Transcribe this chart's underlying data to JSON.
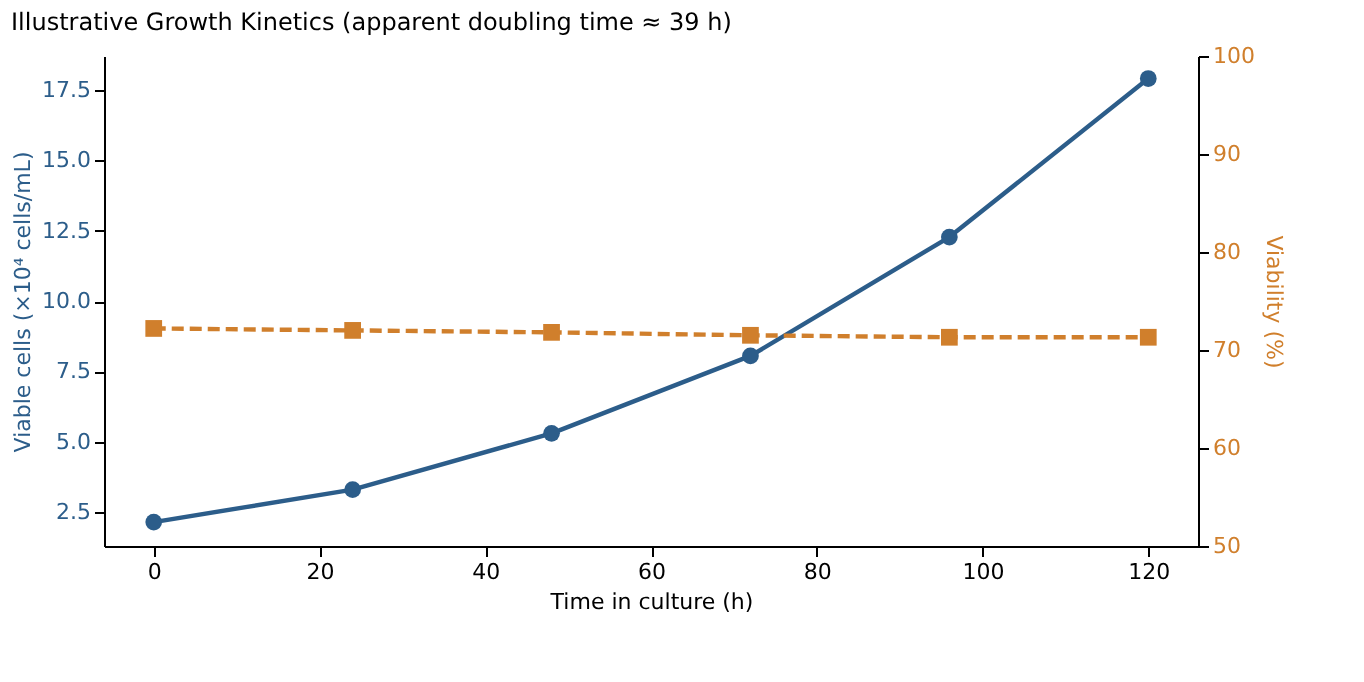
{
  "chart_data": {
    "type": "line",
    "title": "Illustrative Growth Kinetics (apparent doubling time ≈ 39 h)",
    "xlabel": "Time in culture (h)",
    "ylabel": "Viable cells (×10⁴ cells/mL)",
    "y2label": "Viability (%)",
    "x": [
      0,
      24,
      48,
      72,
      96,
      120
    ],
    "series": [
      {
        "color": "#2c5d8a",
        "values": [
          2.15,
          3.3,
          5.3,
          8.05,
          12.27,
          17.9
        ],
        "marker": "circle",
        "line_style": "solid"
      },
      {
        "color": "#d07f2c",
        "values": [
          72.2,
          72.0,
          71.8,
          71.5,
          71.3,
          71.3
        ],
        "marker": "square",
        "line_style": "dashed",
        "axis": "y2"
      }
    ],
    "xlim": [
      -6,
      126
    ],
    "xticks": [
      0,
      20,
      40,
      60,
      80,
      100,
      120
    ],
    "ylim": [
      1.3,
      18.7
    ],
    "yticks": [
      2.5,
      {
        "value": 5,
        "label": "5.0"
      },
      7.5,
      {
        "value": 10,
        "label": "10.0"
      },
      12.5,
      {
        "value": 15,
        "label": "15.0"
      },
      17.5
    ],
    "y2lim": [
      50,
      100
    ],
    "y2ticks": [
      50,
      60,
      70,
      80,
      90,
      100
    ],
    "grid": false
  }
}
